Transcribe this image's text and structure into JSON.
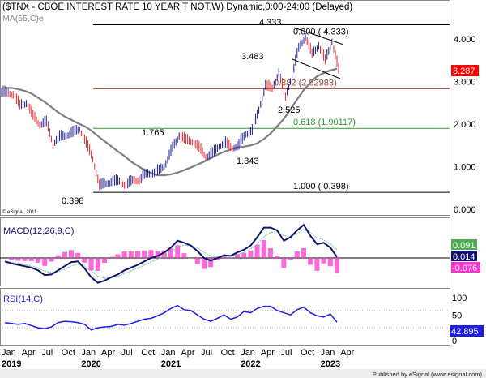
{
  "header": {
    "title": "($TNX - CBOE INTEREST RATE 10 YEAR T NOT,W) Dynamic,0:00-24:00 (Delayed)",
    "ma_label": "MA(55,C)e",
    "copyright": "© eSignal, 2011"
  },
  "footer": {
    "text": "Published by eSignal (www.esignal.com)"
  },
  "colors": {
    "up": "#1a1a8c",
    "down": "#e8262a",
    "ma": "#7f7f7f",
    "fib382": "#a0443c",
    "fib618": "#2e9a2e",
    "macd": "#101070",
    "signal": "#66cc99",
    "hist": "#ff33cc",
    "rsi": "#1e1ee6"
  },
  "chart_data": [
    {
      "type": "line",
      "title": "$TNX weekly price",
      "yaxis_ticks": [
        "4.000",
        "3.000",
        "2.000",
        "1.000",
        "0.000"
      ],
      "ylim": [
        0,
        4.6
      ],
      "months_start": "2019-01",
      "close": [
        2.75,
        2.7,
        2.45,
        2.5,
        2.2,
        2.0,
        2.05,
        1.55,
        1.7,
        1.75,
        1.8,
        1.9,
        1.55,
        1.2,
        0.55,
        0.62,
        0.65,
        0.68,
        0.55,
        0.7,
        0.68,
        0.85,
        0.85,
        0.92,
        1.08,
        1.45,
        1.74,
        1.63,
        1.6,
        1.45,
        1.25,
        1.3,
        1.5,
        1.55,
        1.45,
        1.5,
        1.78,
        1.85,
        2.35,
        2.9,
        2.85,
        3.2,
        2.65,
        3.15,
        3.8,
        4.05,
        3.65,
        3.85,
        3.5,
        3.95,
        3.287
      ],
      "ma55": [
        2.85,
        2.85,
        2.82,
        2.78,
        2.72,
        2.62,
        2.52,
        2.4,
        2.28,
        2.18,
        2.1,
        2.02,
        1.95,
        1.85,
        1.72,
        1.6,
        1.48,
        1.36,
        1.25,
        1.12,
        1.02,
        0.92,
        0.85,
        0.8,
        0.8,
        0.82,
        0.86,
        0.92,
        0.98,
        1.05,
        1.12,
        1.2,
        1.28,
        1.35,
        1.4,
        1.45,
        1.47,
        1.5,
        1.55,
        1.65,
        1.78,
        1.95,
        2.12,
        2.35,
        2.58,
        2.8,
        2.98,
        3.12,
        3.2,
        3.26,
        3.3
      ],
      "last_price": "3.287",
      "annotations": [
        "4.333",
        "3.483",
        "2.525",
        "1.765",
        "1.343",
        "0.398"
      ],
      "fib_levels": [
        {
          "value": 4.333,
          "label": "0.000 ( 4.333)"
        },
        {
          "value": 2.82983,
          "label": "0.382 (2.82983)"
        },
        {
          "value": 1.90117,
          "label": "0.618 (1.90117)"
        },
        {
          "value": 0.398,
          "label": "1.000 ( 0.398)"
        }
      ]
    },
    {
      "type": "line",
      "title": "MACD(12,26,9,C)",
      "macd": [
        -0.05,
        -0.08,
        -0.1,
        -0.12,
        -0.14,
        -0.18,
        -0.25,
        -0.24,
        -0.18,
        -0.12,
        -0.06,
        -0.05,
        -0.15,
        -0.28,
        -0.36,
        -0.33,
        -0.28,
        -0.24,
        -0.18,
        -0.14,
        -0.1,
        -0.05,
        0.0,
        0.03,
        0.08,
        0.15,
        0.25,
        0.22,
        0.18,
        0.1,
        0.0,
        -0.04,
        0.0,
        0.04,
        0.03,
        0.08,
        0.12,
        0.18,
        0.3,
        0.44,
        0.44,
        0.4,
        0.25,
        0.3,
        0.4,
        0.48,
        0.32,
        0.2,
        0.22,
        0.15,
        0.014
      ],
      "ylim": [
        -0.45,
        0.55
      ],
      "values": {
        "signal": "0.091",
        "macd": "0.014",
        "hist": "-0.076"
      }
    },
    {
      "type": "line",
      "title": "RSI(14,C)",
      "ylim": [
        0,
        100
      ],
      "yaxis_ticks": [
        "100",
        "50",
        "0"
      ],
      "rsi": [
        42,
        40,
        38,
        40,
        35,
        30,
        28,
        32,
        42,
        45,
        44,
        42,
        38,
        25,
        30,
        32,
        33,
        38,
        36,
        40,
        45,
        50,
        52,
        58,
        65,
        75,
        82,
        72,
        70,
        60,
        50,
        45,
        52,
        60,
        50,
        55,
        68,
        65,
        75,
        80,
        80,
        70,
        65,
        60,
        72,
        78,
        65,
        58,
        55,
        62,
        42.895
      ],
      "last": "42.895"
    }
  ],
  "xaxis": {
    "months": [
      "Jan",
      "Apr",
      "Jul",
      "Oct",
      "Jan",
      "Apr",
      "Jul",
      "Oct",
      "Jan",
      "Apr",
      "Jul",
      "Oct",
      "Jan",
      "Apr",
      "Jul",
      "Oct",
      "Jan",
      "Apr"
    ],
    "years": [
      "2019",
      "2020",
      "2021",
      "2022",
      "2023"
    ]
  }
}
